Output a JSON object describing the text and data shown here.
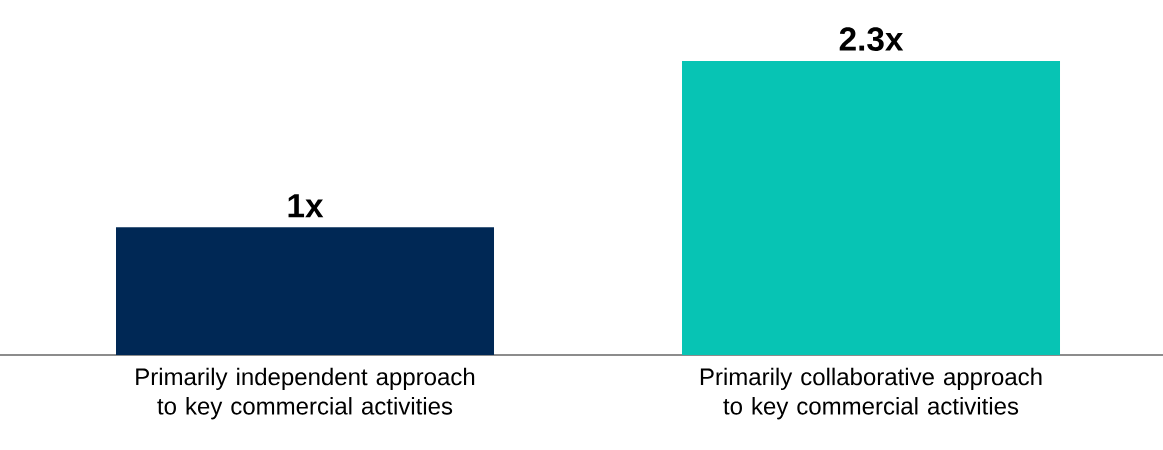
{
  "chart_data": {
    "type": "bar",
    "categories": [
      "Primarily independent approach to key commercial activities",
      "Primarily collaborative approach to key commercial activities"
    ],
    "values": [
      1,
      2.3
    ],
    "value_labels": [
      "1x",
      "2.3x"
    ],
    "colors": [
      "#002855",
      "#07c4b4"
    ],
    "tick_labels": "x"
  }
}
